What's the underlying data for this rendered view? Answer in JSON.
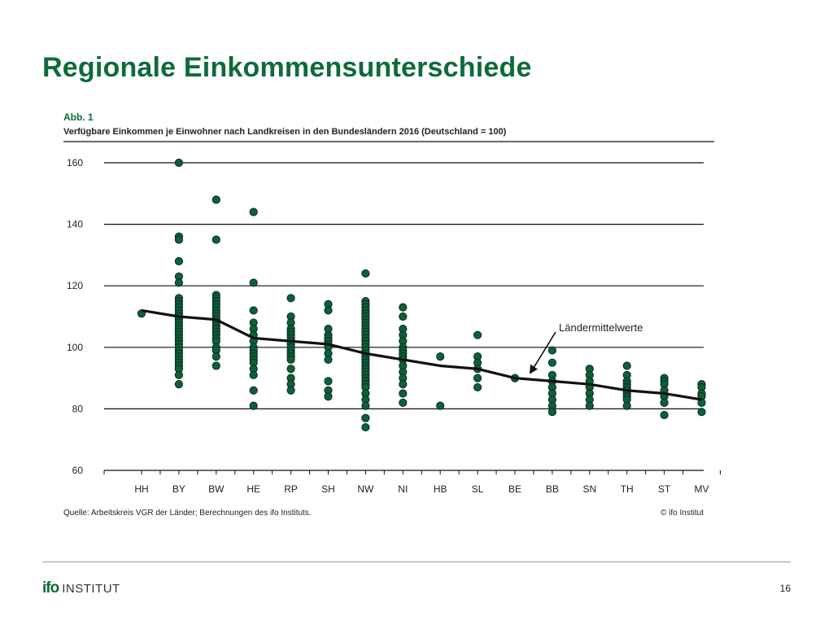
{
  "slide": {
    "title": "Regionale Einkommensunterschiede",
    "page_number": "16"
  },
  "figure": {
    "label": "Abb. 1",
    "subtitle": "Verfügbare Einkommen je Einwohner nach Landkreisen in den Bundesländern 2016 (Deutschland = 100)",
    "source": "Quelle: Arbeitskreis VGR der Länder; Berechnungen des ifo Instituts.",
    "copyright": "© ifo Institut"
  },
  "logo": {
    "ifo": "ifo",
    "institut": "INSTITUT"
  },
  "colors": {
    "title": "#0d6b3a",
    "dot_fill": "#0f5f3d",
    "dot_stroke": "#062e1d",
    "mean_line": "#111111",
    "grid": "#111111"
  },
  "chart_data": {
    "type": "scatter",
    "title": "",
    "xlabel": "",
    "ylabel": "",
    "categories": [
      "HH",
      "BY",
      "BW",
      "HE",
      "RP",
      "SH",
      "NW",
      "NI",
      "HB",
      "SL",
      "BE",
      "BB",
      "SN",
      "TH",
      "ST",
      "MV"
    ],
    "ylim": [
      60,
      160
    ],
    "yticks": [
      60,
      80,
      100,
      120,
      140,
      160
    ],
    "grid": true,
    "points": [
      [
        111
      ],
      [
        160,
        136,
        135,
        128,
        123,
        121,
        116,
        115,
        114,
        113,
        112,
        111,
        110,
        109,
        108,
        107,
        106,
        105,
        104,
        103,
        102,
        101,
        100,
        99,
        98,
        97,
        96,
        95,
        94,
        93,
        91,
        88
      ],
      [
        148,
        135,
        117,
        116,
        115,
        114,
        113,
        112,
        111,
        110,
        109,
        108,
        107,
        106,
        105,
        104,
        103,
        102,
        100,
        99,
        97,
        94
      ],
      [
        144,
        121,
        112,
        108,
        106,
        104,
        102,
        100,
        99,
        98,
        97,
        96,
        95,
        93,
        91,
        86,
        81
      ],
      [
        116,
        110,
        108,
        106,
        105,
        104,
        103,
        102,
        101,
        100,
        99,
        98,
        97,
        96,
        93,
        90,
        88,
        86
      ],
      [
        114,
        112,
        106,
        104,
        103,
        102,
        101,
        100,
        98,
        96,
        89,
        86,
        84
      ],
      [
        124,
        115,
        114,
        113,
        112,
        111,
        110,
        109,
        108,
        107,
        106,
        105,
        104,
        103,
        102,
        101,
        100,
        99,
        98,
        97,
        96,
        95,
        94,
        93,
        92,
        91,
        90,
        89,
        88,
        87,
        85,
        83,
        81,
        77,
        74
      ],
      [
        113,
        110,
        106,
        104,
        102,
        100,
        99,
        98,
        97,
        96,
        94,
        92,
        90,
        88,
        85,
        82
      ],
      [
        97,
        81
      ],
      [
        104,
        97,
        95,
        93,
        90,
        87
      ],
      [
        90
      ],
      [
        99,
        95,
        91,
        89,
        87,
        85,
        83,
        81,
        79
      ],
      [
        93,
        91,
        89,
        87,
        85,
        83,
        81
      ],
      [
        94,
        91,
        89,
        88,
        87,
        86,
        85,
        84,
        83,
        81
      ],
      [
        90,
        89,
        88,
        86,
        84,
        82,
        78
      ],
      [
        88,
        87,
        85,
        84,
        82,
        79
      ]
    ],
    "mean_series": {
      "name": "Ländermittelwerte",
      "values": [
        112,
        110,
        109,
        103,
        102,
        101,
        98,
        96,
        94,
        93,
        90,
        89,
        88,
        86,
        85,
        83
      ]
    },
    "annotations": [
      {
        "text": "Ländermittelwerte",
        "target_category": "BE",
        "target_value": 90
      }
    ]
  }
}
